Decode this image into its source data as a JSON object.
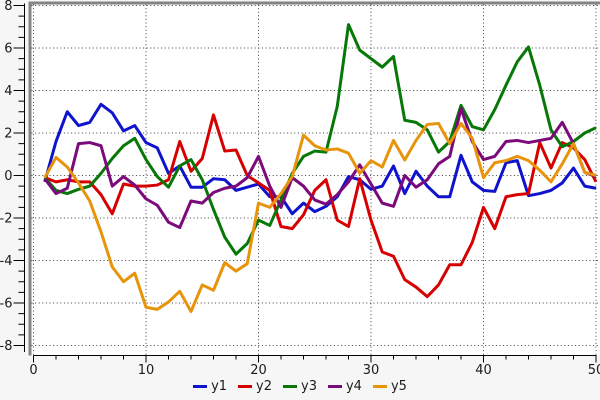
{
  "chart_data": {
    "type": "line",
    "title": "",
    "xlabel": "",
    "ylabel": "",
    "xlim": [
      0,
      50.5
    ],
    "ylim": [
      -8,
      8
    ],
    "grid": "dotted",
    "legend_position": "bottom-center",
    "x_ticks": [
      0,
      10,
      20,
      30,
      40,
      50
    ],
    "x_tick_labels": [
      "0",
      "10",
      "20",
      "30",
      "40",
      "50"
    ],
    "x_minor_step": 2,
    "y_ticks": [
      8,
      6,
      4,
      2,
      0,
      -2,
      -4,
      -6,
      -8
    ],
    "y_tick_labels": [
      "8",
      "6",
      "4",
      "2",
      "0",
      "-2",
      "-4",
      "-6",
      "-8"
    ],
    "y_minor_step": 0.5,
    "colors": {
      "axis": "#000000",
      "grid": "#3f3f3f",
      "border": "#848484",
      "plot_bg": "#ffffff",
      "page_bg": "#f6f6f6"
    },
    "x": [
      1,
      2,
      3,
      4,
      5,
      6,
      7,
      8,
      9,
      10,
      11,
      12,
      13,
      14,
      15,
      16,
      17,
      18,
      19,
      20,
      21,
      22,
      23,
      24,
      25,
      26,
      27,
      28,
      29,
      30,
      31,
      32,
      33,
      34,
      35,
      36,
      37,
      38,
      39,
      40,
      41,
      42,
      43,
      44,
      45,
      46,
      47,
      48,
      49,
      50
    ],
    "series": [
      {
        "name": "y1",
        "color": "#1013cd",
        "values": [
          -0.3,
          1.6,
          3.0,
          2.35,
          2.5,
          3.35,
          2.95,
          2.1,
          2.35,
          1.55,
          1.3,
          0.1,
          0.45,
          -0.55,
          -0.55,
          -0.15,
          -0.2,
          -0.7,
          -0.55,
          -0.4,
          -1.0,
          -1.0,
          -1.8,
          -1.3,
          -1.7,
          -1.45,
          -1.0,
          -0.05,
          -0.2,
          -0.65,
          -0.5,
          0.45,
          -0.85,
          0.2,
          -0.5,
          -1.0,
          -1.0,
          0.95,
          -0.3,
          -0.7,
          -0.75,
          0.6,
          0.7,
          -0.95,
          -0.85,
          -0.7,
          -0.35,
          0.35,
          -0.5,
          -0.6
        ]
      },
      {
        "name": "y2",
        "color": "#d60000",
        "values": [
          -0.1,
          -0.3,
          -0.2,
          -0.3,
          -0.3,
          -0.9,
          -1.8,
          -0.4,
          -0.5,
          -0.5,
          -0.45,
          -0.2,
          1.6,
          0.2,
          0.8,
          2.85,
          1.15,
          1.2,
          0.0,
          -0.35,
          -0.7,
          -2.4,
          -2.5,
          -1.85,
          -0.7,
          -0.2,
          -2.1,
          -2.4,
          -0.15,
          -2.1,
          -3.6,
          -3.8,
          -4.9,
          -5.25,
          -5.7,
          -5.15,
          -4.2,
          -4.2,
          -3.15,
          -1.5,
          -2.5,
          -1.0,
          -0.9,
          -0.85,
          1.55,
          0.35,
          1.55,
          1.3,
          0.75,
          -0.3
        ]
      },
      {
        "name": "y3",
        "color": "#077807",
        "values": [
          -0.1,
          -0.7,
          -0.85,
          -0.65,
          -0.5,
          0.1,
          0.8,
          1.4,
          1.75,
          0.75,
          -0.05,
          -0.55,
          0.45,
          0.75,
          -0.2,
          -1.6,
          -2.9,
          -3.7,
          -3.2,
          -2.1,
          -2.35,
          -1.15,
          0.1,
          0.9,
          1.15,
          1.1,
          3.25,
          7.1,
          5.9,
          5.5,
          5.1,
          5.6,
          2.6,
          2.5,
          2.15,
          1.1,
          1.6,
          3.3,
          2.3,
          2.15,
          3.1,
          4.25,
          5.35,
          6.05,
          4.25,
          2.15,
          1.35,
          1.6,
          2.0,
          2.25
        ]
      },
      {
        "name": "y4",
        "color": "#7b0a7b",
        "values": [
          -0.15,
          -0.85,
          -0.6,
          1.5,
          1.55,
          1.4,
          -0.5,
          -0.05,
          -0.45,
          -1.1,
          -1.4,
          -2.2,
          -2.45,
          -1.2,
          -1.3,
          -0.8,
          -0.6,
          -0.5,
          -0.1,
          0.9,
          -0.5,
          -1.5,
          -0.1,
          -0.5,
          -1.15,
          -1.35,
          -0.9,
          -0.3,
          0.5,
          -0.4,
          -1.3,
          -1.45,
          0.0,
          -0.55,
          -0.2,
          0.55,
          0.9,
          3.15,
          1.6,
          0.75,
          0.9,
          1.6,
          1.65,
          1.55,
          1.65,
          1.75,
          2.5,
          1.5,
          0.15,
          -0.05
        ]
      },
      {
        "name": "y5",
        "color": "#e8940a",
        "values": [
          -0.1,
          0.85,
          0.4,
          -0.35,
          -1.2,
          -2.65,
          -4.3,
          -5.0,
          -4.6,
          -6.2,
          -6.3,
          -5.95,
          -5.45,
          -6.4,
          -5.15,
          -5.4,
          -4.1,
          -4.5,
          -4.15,
          -1.3,
          -1.5,
          -0.85,
          -0.05,
          1.9,
          1.4,
          1.2,
          1.25,
          1.05,
          0.1,
          0.7,
          0.4,
          1.65,
          0.73,
          1.65,
          2.4,
          2.45,
          1.5,
          2.45,
          1.75,
          -0.1,
          0.6,
          0.7,
          0.9,
          0.7,
          0.25,
          -0.3,
          0.55,
          1.5,
          0.15,
          0.0
        ]
      }
    ]
  }
}
